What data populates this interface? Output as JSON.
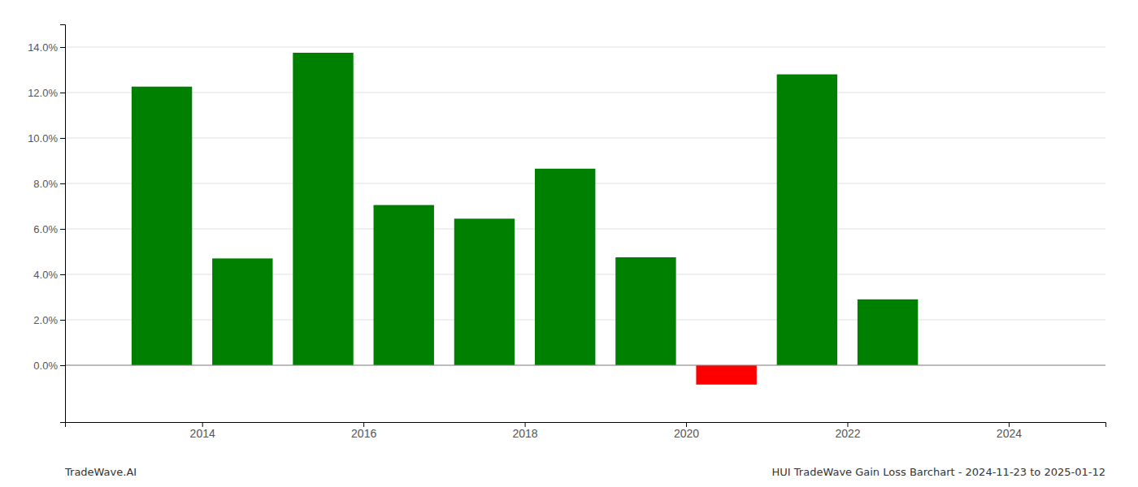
{
  "chart_data": {
    "type": "bar",
    "x": [
      2013,
      2014,
      2015,
      2016,
      2017,
      2018,
      2019,
      2020,
      2021,
      2022,
      2023
    ],
    "values": [
      0.1226,
      0.047,
      0.1375,
      0.0705,
      0.0645,
      0.0865,
      0.0475,
      -0.0085,
      0.128,
      0.029,
      null
    ],
    "colors": [
      "#008000",
      "#008000",
      "#008000",
      "#008000",
      "#008000",
      "#008000",
      "#008000",
      "#ff0000",
      "#008000",
      "#008000",
      null
    ],
    "xlim": [
      2012.3,
      2025.2
    ],
    "xticks": [
      2014,
      2016,
      2018,
      2020,
      2022,
      2024
    ],
    "ylim": [
      -0.025,
      0.15
    ],
    "yticks": [
      {
        "value": 0.0,
        "label": "0.0%"
      },
      {
        "value": 0.02,
        "label": "2.0%"
      },
      {
        "value": 0.04,
        "label": "4.0%"
      },
      {
        "value": 0.06,
        "label": "6.0%"
      },
      {
        "value": 0.08,
        "label": "8.0%"
      },
      {
        "value": 0.1,
        "label": "10.0%"
      },
      {
        "value": 0.12,
        "label": "12.0%"
      },
      {
        "value": 0.14,
        "label": "14.0%"
      }
    ],
    "grid": true,
    "annotations": [
      "TradeWave.AI",
      "HUI TradeWave Gain Loss Barchart - 2024-11-23 to 2025-01-12"
    ]
  }
}
